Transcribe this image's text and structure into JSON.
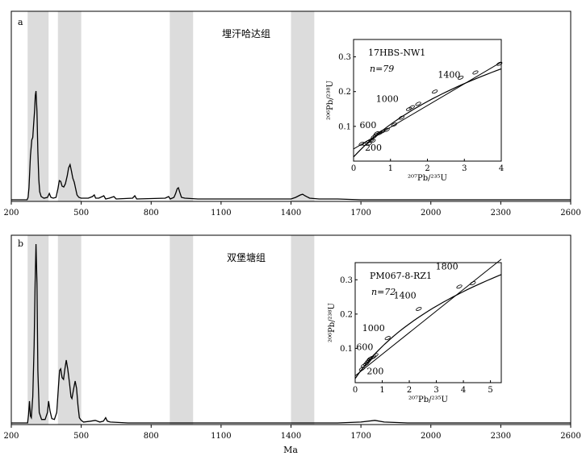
{
  "chart_data": {
    "type": "line",
    "xlabel": "Ma",
    "x_ticks": [
      200,
      500,
      800,
      1100,
      1400,
      1700,
      2000,
      2300,
      2600
    ],
    "x_range": [
      200,
      2600
    ],
    "shaded_bands": [
      [
        270,
        360
      ],
      [
        400,
        500
      ],
      [
        880,
        980
      ],
      [
        1400,
        1500
      ]
    ],
    "panels": [
      {
        "id": "a",
        "label": "a",
        "title": "埋汗哈达组",
        "curve": [
          [
            200,
            0
          ],
          [
            268,
            0
          ],
          [
            272,
            3
          ],
          [
            276,
            15
          ],
          [
            282,
            55
          ],
          [
            288,
            75
          ],
          [
            292,
            78
          ],
          [
            296,
            95
          ],
          [
            300,
            112
          ],
          [
            303,
            130
          ],
          [
            306,
            136
          ],
          [
            310,
            110
          ],
          [
            314,
            60
          ],
          [
            318,
            25
          ],
          [
            322,
            10
          ],
          [
            328,
            4
          ],
          [
            340,
            2
          ],
          [
            355,
            3
          ],
          [
            363,
            8
          ],
          [
            370,
            3
          ],
          [
            380,
            2
          ],
          [
            392,
            3
          ],
          [
            400,
            14
          ],
          [
            406,
            24
          ],
          [
            412,
            23
          ],
          [
            418,
            17
          ],
          [
            425,
            16
          ],
          [
            432,
            20
          ],
          [
            440,
            30
          ],
          [
            446,
            40
          ],
          [
            452,
            44
          ],
          [
            458,
            36
          ],
          [
            464,
            27
          ],
          [
            470,
            22
          ],
          [
            476,
            14
          ],
          [
            482,
            6
          ],
          [
            490,
            3
          ],
          [
            500,
            2
          ],
          [
            530,
            2
          ],
          [
            548,
            4
          ],
          [
            556,
            6
          ],
          [
            562,
            2
          ],
          [
            575,
            2
          ],
          [
            590,
            4
          ],
          [
            597,
            5
          ],
          [
            605,
            1
          ],
          [
            620,
            2
          ],
          [
            640,
            4
          ],
          [
            650,
            1
          ],
          [
            720,
            2
          ],
          [
            730,
            5
          ],
          [
            738,
            1
          ],
          [
            860,
            2
          ],
          [
            875,
            4
          ],
          [
            882,
            1
          ],
          [
            898,
            3
          ],
          [
            905,
            8
          ],
          [
            912,
            14
          ],
          [
            917,
            15
          ],
          [
            922,
            10
          ],
          [
            930,
            3
          ],
          [
            945,
            2
          ],
          [
            1000,
            1
          ],
          [
            1400,
            1
          ],
          [
            1420,
            3
          ],
          [
            1440,
            6
          ],
          [
            1450,
            7
          ],
          [
            1460,
            5
          ],
          [
            1480,
            2
          ],
          [
            1520,
            1
          ],
          [
            1600,
            1
          ],
          [
            1700,
            0
          ],
          [
            2600,
            0
          ]
        ],
        "curve_ymax": 136,
        "inset": {
          "sample": "17HBS-NW1",
          "n": "n=79",
          "xlabel": "²⁰⁷Pb/²³⁵U",
          "ylabel": "²⁰⁶Pb/²³⁸U",
          "x_ticks": [
            0,
            1,
            2,
            3,
            4
          ],
          "y_ticks": [
            0.1,
            0.2,
            0.3
          ],
          "x_range": [
            0,
            4
          ],
          "y_range": [
            0,
            0.35
          ],
          "concordia_ages": [
            "200",
            "600",
            "1000",
            "1400"
          ],
          "discordia": [
            [
              0,
              0.035
            ],
            [
              4,
              0.285
            ]
          ],
          "ellipses": [
            [
              0.22,
              0.05
            ],
            [
              0.32,
              0.05
            ],
            [
              0.38,
              0.055
            ],
            [
              0.42,
              0.05
            ],
            [
              0.48,
              0.06
            ],
            [
              0.52,
              0.058
            ],
            [
              0.55,
              0.07
            ],
            [
              0.6,
              0.075
            ],
            [
              0.63,
              0.08
            ],
            [
              0.7,
              0.08
            ],
            [
              0.78,
              0.085
            ],
            [
              0.9,
              0.09
            ],
            [
              1.1,
              0.105
            ],
            [
              1.3,
              0.125
            ],
            [
              1.5,
              0.15
            ],
            [
              1.58,
              0.155
            ],
            [
              1.75,
              0.165
            ],
            [
              2.2,
              0.2
            ],
            [
              2.9,
              0.24
            ],
            [
              3.3,
              0.255
            ],
            [
              3.95,
              0.28
            ]
          ]
        }
      },
      {
        "id": "b",
        "label": "b",
        "title": "双堡塘组",
        "curve": [
          [
            200,
            0
          ],
          [
            270,
            0
          ],
          [
            274,
            10
          ],
          [
            278,
            25
          ],
          [
            282,
            8
          ],
          [
            286,
            6
          ],
          [
            292,
            30
          ],
          [
            298,
            90
          ],
          [
            302,
            160
          ],
          [
            306,
            205
          ],
          [
            310,
            160
          ],
          [
            314,
            60
          ],
          [
            320,
            12
          ],
          [
            330,
            4
          ],
          [
            345,
            4
          ],
          [
            355,
            12
          ],
          [
            360,
            25
          ],
          [
            366,
            14
          ],
          [
            374,
            5
          ],
          [
            385,
            4
          ],
          [
            395,
            12
          ],
          [
            402,
            40
          ],
          [
            407,
            60
          ],
          [
            412,
            62
          ],
          [
            418,
            52
          ],
          [
            424,
            50
          ],
          [
            430,
            62
          ],
          [
            436,
            72
          ],
          [
            442,
            62
          ],
          [
            450,
            45
          ],
          [
            456,
            30
          ],
          [
            460,
            28
          ],
          [
            468,
            40
          ],
          [
            474,
            48
          ],
          [
            480,
            40
          ],
          [
            486,
            20
          ],
          [
            492,
            6
          ],
          [
            500,
            3
          ],
          [
            510,
            1
          ],
          [
            540,
            2
          ],
          [
            560,
            3
          ],
          [
            580,
            1
          ],
          [
            595,
            2
          ],
          [
            605,
            6
          ],
          [
            612,
            2
          ],
          [
            625,
            1
          ],
          [
            700,
            0
          ],
          [
            1000,
            0
          ],
          [
            1600,
            0
          ],
          [
            1700,
            1
          ],
          [
            1760,
            3
          ],
          [
            1800,
            1
          ],
          [
            1900,
            0
          ],
          [
            2600,
            0
          ]
        ],
        "curve_ymax": 205,
        "inset": {
          "sample": "PM067-8-RZ1",
          "n": "n=72",
          "xlabel": "²⁰⁷Pb/²³⁵U",
          "ylabel": "²⁰⁶Pb/²³⁸U",
          "x_ticks": [
            0,
            1,
            2,
            3,
            4,
            5
          ],
          "y_ticks": [
            0.1,
            0.2,
            0.3
          ],
          "x_range": [
            0,
            5.4
          ],
          "y_range": [
            0,
            0.35
          ],
          "concordia_ages": [
            "200",
            "600",
            "1000",
            "1400",
            "1800"
          ],
          "discordia": [
            [
              0,
              0.02
            ],
            [
              5.4,
              0.36
            ]
          ],
          "ellipses": [
            [
              0.25,
              0.04
            ],
            [
              0.32,
              0.05
            ],
            [
              0.4,
              0.055
            ],
            [
              0.45,
              0.06
            ],
            [
              0.5,
              0.065
            ],
            [
              0.55,
              0.07
            ],
            [
              0.6,
              0.072
            ],
            [
              0.68,
              0.075
            ],
            [
              0.75,
              0.08
            ],
            [
              1.2,
              0.13
            ],
            [
              2.35,
              0.215
            ],
            [
              3.85,
              0.28
            ],
            [
              4.35,
              0.29
            ]
          ]
        }
      }
    ]
  }
}
